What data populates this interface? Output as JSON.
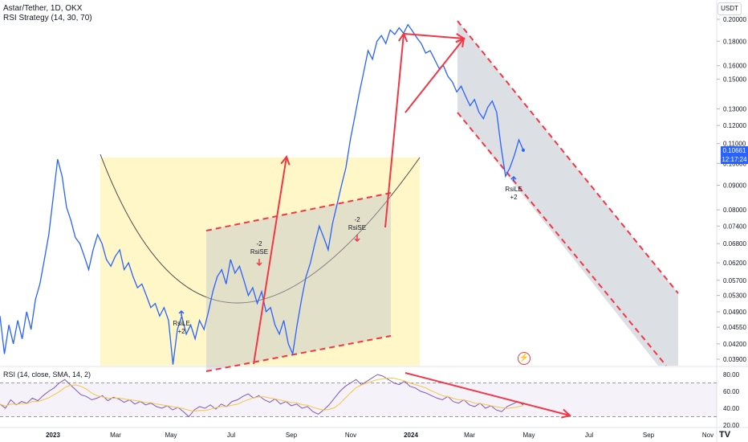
{
  "header": {
    "title": "Astar/Tether, 1D, OKX",
    "strategy": "RSI Strategy (14, 30, 70)",
    "currency": "USDT",
    "rsi_title": "RSI (14, close, SMA, 14, 2)",
    "logo": "TV"
  },
  "price_badge": {
    "price": "0.10661",
    "countdown": "12:17:24"
  },
  "colors": {
    "price_line": "#2962ff",
    "rsi_line": "#7e57c2",
    "rsi_ma": "#f5c542",
    "annotation_red": "#f23645",
    "channel_fill": "#c0c4cc",
    "cup_fill": "#fff6c2",
    "buy_arrow": "#2962ff",
    "sell_arrow": "#f23645"
  },
  "signals": [
    {
      "label_top": "",
      "label": "RsiLE",
      "label_bottom": "+2",
      "type": "buy"
    },
    {
      "label_top": "-2",
      "label": "RsiSE",
      "label_bottom": "",
      "type": "sell"
    },
    {
      "label_top": "-2",
      "label": "RsiSE",
      "label_bottom": "",
      "type": "sell"
    },
    {
      "label_top": "",
      "label": "RsiLE",
      "label_bottom": "+2",
      "type": "buy"
    }
  ],
  "chart_data": {
    "type": "line",
    "title": "Astar/Tether, 1D, OKX",
    "price_scale": "log",
    "x_ticks": [
      "2023",
      "Mar",
      "May",
      "Jul",
      "Sep",
      "Nov",
      "2024",
      "Mar",
      "May",
      "Jul",
      "Sep",
      "Nov"
    ],
    "y_ticks": [
      "0.20000",
      "0.18000",
      "0.16000",
      "0.15000",
      "0.13000",
      "0.12000",
      "0.11000",
      "0.10000",
      "0.09000",
      "0.08000",
      "0.07400",
      "0.06800",
      "0.06200",
      "0.05700",
      "0.05300",
      "0.04900",
      "0.04550",
      "0.04200",
      "0.03900"
    ],
    "y_tick_values": [
      0.2,
      0.18,
      0.16,
      0.15,
      0.13,
      0.12,
      0.11,
      0.1,
      0.09,
      0.08,
      0.074,
      0.068,
      0.062,
      0.057,
      0.053,
      0.049,
      0.0455,
      0.042,
      0.039
    ],
    "series": [
      {
        "values": [
          0.048,
          0.04,
          0.046,
          0.042,
          0.047,
          0.043,
          0.049,
          0.045,
          0.052,
          0.056,
          0.063,
          0.071,
          0.085,
          0.102,
          0.094,
          0.081,
          0.076,
          0.07,
          0.068,
          0.064,
          0.06,
          0.066,
          0.071,
          0.068,
          0.063,
          0.061,
          0.064,
          0.066,
          0.06,
          0.062,
          0.058,
          0.055,
          0.056,
          0.053,
          0.05,
          0.051,
          0.048,
          0.05,
          0.047,
          0.038,
          0.045,
          0.048,
          0.044,
          0.046,
          0.043,
          0.047,
          0.045,
          0.049,
          0.054,
          0.058,
          0.06,
          0.056,
          0.063,
          0.059,
          0.061,
          0.057,
          0.053,
          0.055,
          0.051,
          0.054,
          0.049,
          0.05,
          0.046,
          0.044,
          0.047,
          0.042,
          0.04,
          0.046,
          0.052,
          0.058,
          0.062,
          0.068,
          0.074,
          0.07,
          0.066,
          0.075,
          0.082,
          0.09,
          0.098,
          0.112,
          0.125,
          0.14,
          0.155,
          0.172,
          0.165,
          0.18,
          0.185,
          0.178,
          0.19,
          0.186,
          0.192,
          0.187,
          0.195,
          0.189,
          0.183,
          0.178,
          0.17,
          0.172,
          0.165,
          0.158,
          0.16,
          0.152,
          0.148,
          0.141,
          0.145,
          0.138,
          0.132,
          0.136,
          0.128,
          0.124,
          0.131,
          0.135,
          0.128,
          0.108,
          0.094,
          0.098,
          0.104,
          0.112,
          0.1066
        ]
      },
      {
        "name": "RSI",
        "values": [
          45,
          40,
          50,
          44,
          48,
          46,
          52,
          49,
          55,
          60,
          64,
          70,
          74,
          68,
          62,
          56,
          54,
          50,
          52,
          55,
          49,
          53,
          51,
          47,
          50,
          45,
          48,
          44,
          46,
          42,
          40,
          43,
          38,
          41,
          36,
          30,
          38,
          42,
          40,
          44,
          39,
          45,
          42,
          48,
          50,
          54,
          57,
          52,
          55,
          50,
          47,
          51,
          45,
          48,
          43,
          45,
          40,
          42,
          36,
          33,
          38,
          44,
          52,
          60,
          66,
          70,
          74,
          68,
          72,
          76,
          80,
          78,
          74,
          70,
          68,
          72,
          66,
          64,
          60,
          58,
          55,
          52,
          50,
          54,
          48,
          46,
          50,
          44,
          42,
          46,
          40,
          43,
          38,
          36,
          42,
          45,
          48,
          44
        ]
      }
    ],
    "rsi_levels": [
      70,
      30
    ],
    "rsi_ticks": [
      "80.00",
      "60.00",
      "40.00",
      "20.00"
    ]
  }
}
